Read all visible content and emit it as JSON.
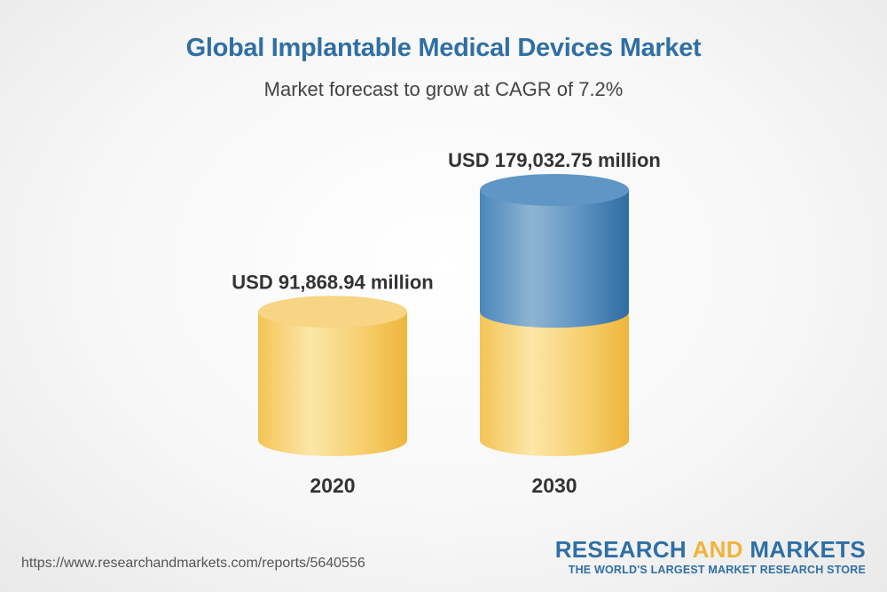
{
  "chart_data": {
    "type": "bar",
    "title": "Global Implantable Medical Devices Market",
    "subtitle": "Market forecast to grow at CAGR of 7.2%",
    "categories": [
      "2020",
      "2030"
    ],
    "values": [
      91868.94,
      179032.75
    ],
    "value_labels": [
      "USD 91,868.94 million",
      "USD 179,032.75 million"
    ],
    "unit": "USD million",
    "colors": {
      "base": "#f2c250",
      "growth": "#3f7fb4",
      "title": "#2f6fa5"
    }
  },
  "footer": {
    "source_url": "https://www.researchandmarkets.com/reports/5640556",
    "brand_part1": "RESEARCH ",
    "brand_part2": "AND",
    "brand_part3": " MARKETS",
    "brand_tagline": "THE WORLD'S LARGEST MARKET RESEARCH STORE"
  }
}
